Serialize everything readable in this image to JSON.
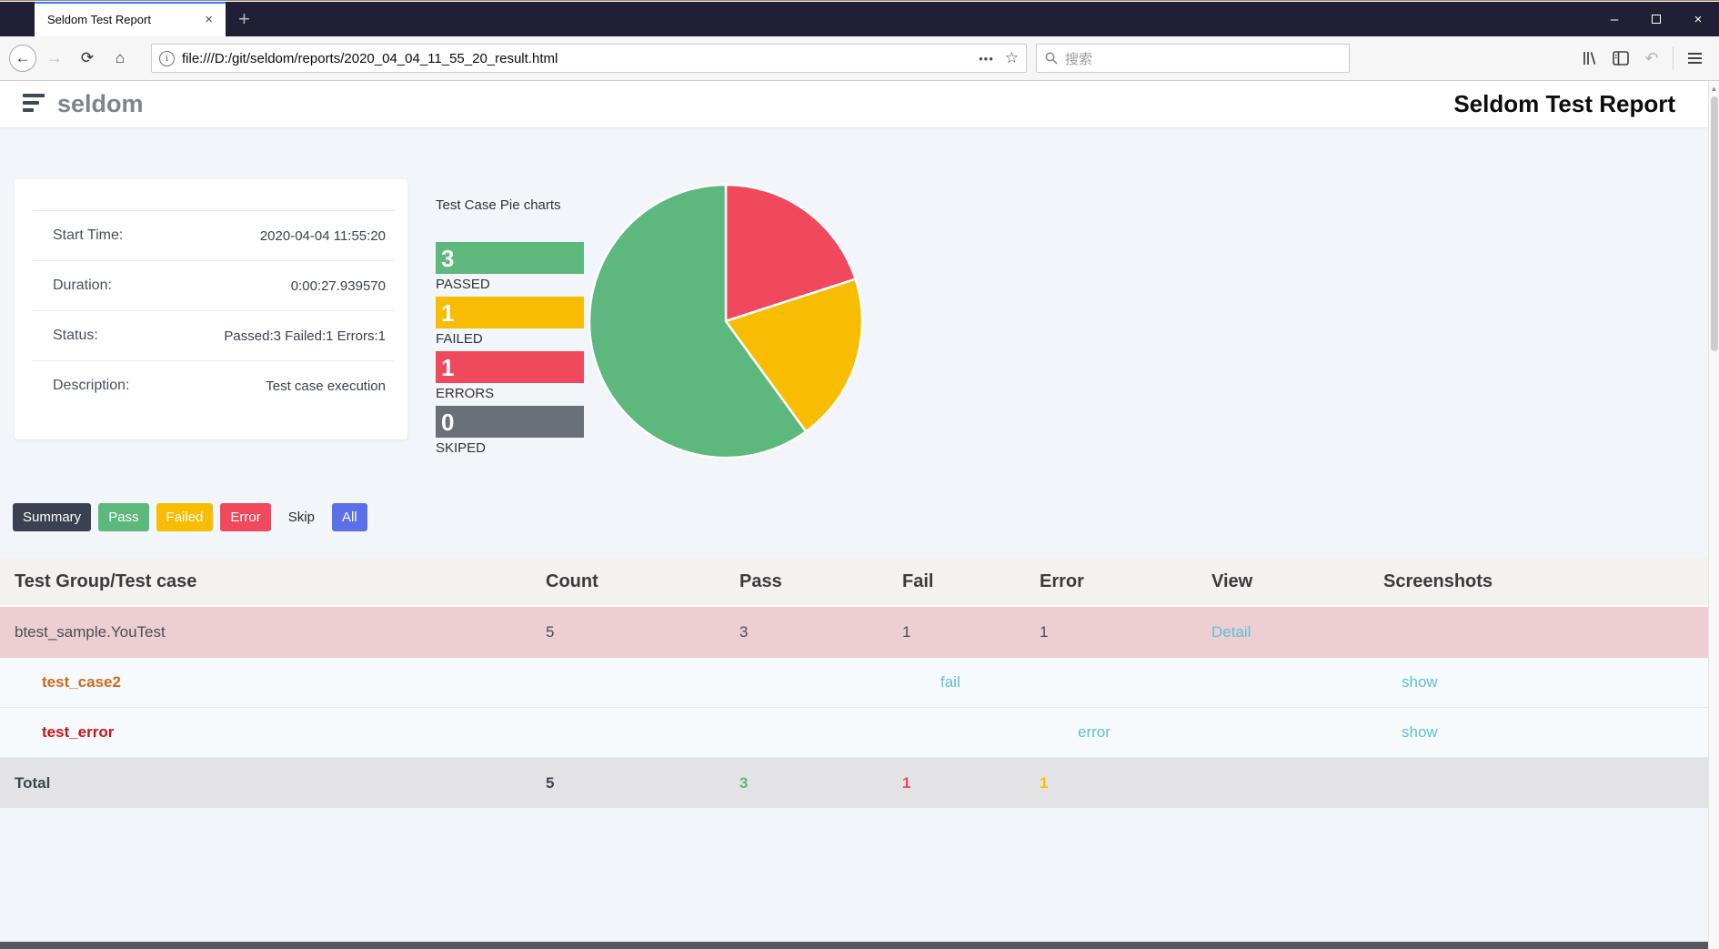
{
  "browser": {
    "tab": {
      "title": "Seldom Test Report"
    },
    "url": "file:///D:/git/seldom/reports/2020_04_04_11_55_20_result.html",
    "search_placeholder": "搜索",
    "icons": {
      "back": "←",
      "forward": "→",
      "reload": "⟳",
      "home": "⌂",
      "info": "i",
      "more": "•••",
      "bookmark": "☆",
      "new_tab": "+",
      "tab_close": "×",
      "undo": "↶",
      "minimize": "–",
      "close": "×",
      "scroll_up": "▲"
    }
  },
  "report": {
    "logo": "seldom",
    "title": "Seldom Test Report",
    "summary": {
      "rows": [
        {
          "label": "Start Time:",
          "value": "2020-04-04 11:55:20"
        },
        {
          "label": "Duration:",
          "value": "0:00:27.939570"
        },
        {
          "label": "Status:",
          "value": "Passed:3 Failed:1 Errors:1"
        },
        {
          "label": "Description:",
          "value": "Test case execution"
        }
      ]
    },
    "chart_title": "Test Case Pie charts",
    "filters": [
      {
        "label": "Summary",
        "bg": "#3a4150",
        "fg": "#ffffff"
      },
      {
        "label": "Pass",
        "bg": "#5cb87c",
        "fg": "#ffffff"
      },
      {
        "label": "Failed",
        "bg": "#f8bd00",
        "fg": "#ffffff"
      },
      {
        "label": "Error",
        "bg": "#f0485c",
        "fg": "#ffffff"
      },
      {
        "label": "Skip",
        "bg": "transparent",
        "fg": "#2b2b2b"
      },
      {
        "label": "All",
        "bg": "#5a6fe8",
        "fg": "#ffffff"
      }
    ],
    "table": {
      "columns": [
        "Test Group/Test case",
        "Count",
        "Pass",
        "Fail",
        "Error",
        "View",
        "Screenshots"
      ],
      "rows": [
        {
          "style": "group",
          "cells": [
            {
              "text": "btest_sample.YouTest",
              "name": "test-group-name"
            },
            {
              "text": "5",
              "name": "count-cell"
            },
            {
              "text": "3",
              "name": "pass-cell"
            },
            {
              "text": "1",
              "name": "fail-cell"
            },
            {
              "text": "1",
              "name": "error-cell"
            },
            {
              "text": "Detail",
              "name": "detail-link",
              "link": true
            },
            {
              "text": "",
              "name": "screenshots-cell"
            }
          ]
        },
        {
          "style": "case",
          "cells": [
            {
              "text": "test_case2",
              "name": "test-case-name",
              "cls": "case-fail-name"
            },
            {
              "text": "",
              "name": "count-cell"
            },
            {
              "text": "",
              "name": "pass-cell"
            },
            {
              "text": "fail",
              "name": "fail-link",
              "link": true,
              "cls": "pad40"
            },
            {
              "text": "",
              "name": "error-cell"
            },
            {
              "text": "",
              "name": "view-cell"
            },
            {
              "text": "show",
              "name": "show-link",
              "link": true,
              "cls": "pad20"
            }
          ]
        },
        {
          "style": "case",
          "cells": [
            {
              "text": "test_error",
              "name": "test-case-name",
              "cls": "case-error-name"
            },
            {
              "text": "",
              "name": "count-cell"
            },
            {
              "text": "",
              "name": "pass-cell"
            },
            {
              "text": "",
              "name": "fail-cell"
            },
            {
              "text": "error",
              "name": "error-link",
              "link": true,
              "cls": "pad40"
            },
            {
              "text": "",
              "name": "view-cell"
            },
            {
              "text": "show",
              "name": "show-link",
              "link": true,
              "cls": "pad20"
            }
          ]
        },
        {
          "style": "total",
          "cells": [
            {
              "text": "Total",
              "name": "total-label"
            },
            {
              "text": "5",
              "name": "count-cell"
            },
            {
              "text": "3",
              "name": "pass-cell",
              "cls": "num-pass"
            },
            {
              "text": "1",
              "name": "fail-cell",
              "cls": "num-fail"
            },
            {
              "text": "1",
              "name": "error-cell",
              "cls": "num-error"
            },
            {
              "text": "",
              "name": "view-cell"
            },
            {
              "text": "",
              "name": "screenshots-cell"
            }
          ]
        }
      ]
    }
  },
  "chart_data": {
    "type": "pie",
    "title": "Test Case Pie charts",
    "start_angle_deg": -90,
    "direction": "clockwise",
    "slices": [
      {
        "label": "ERRORS",
        "value": 1,
        "color": "#f0485c"
      },
      {
        "label": "FAILED",
        "value": 1,
        "color": "#f8bd00"
      },
      {
        "label": "PASSED",
        "value": 3,
        "color": "#5cb87c"
      }
    ],
    "legend": [
      {
        "label": "PASSED",
        "value": 3,
        "color": "#5cb87c"
      },
      {
        "label": "FAILED",
        "value": 1,
        "color": "#f8bd00"
      },
      {
        "label": "ERRORS",
        "value": 1,
        "color": "#f0485c"
      },
      {
        "label": "SKIPED",
        "value": 0,
        "color": "#6a7078"
      }
    ]
  }
}
